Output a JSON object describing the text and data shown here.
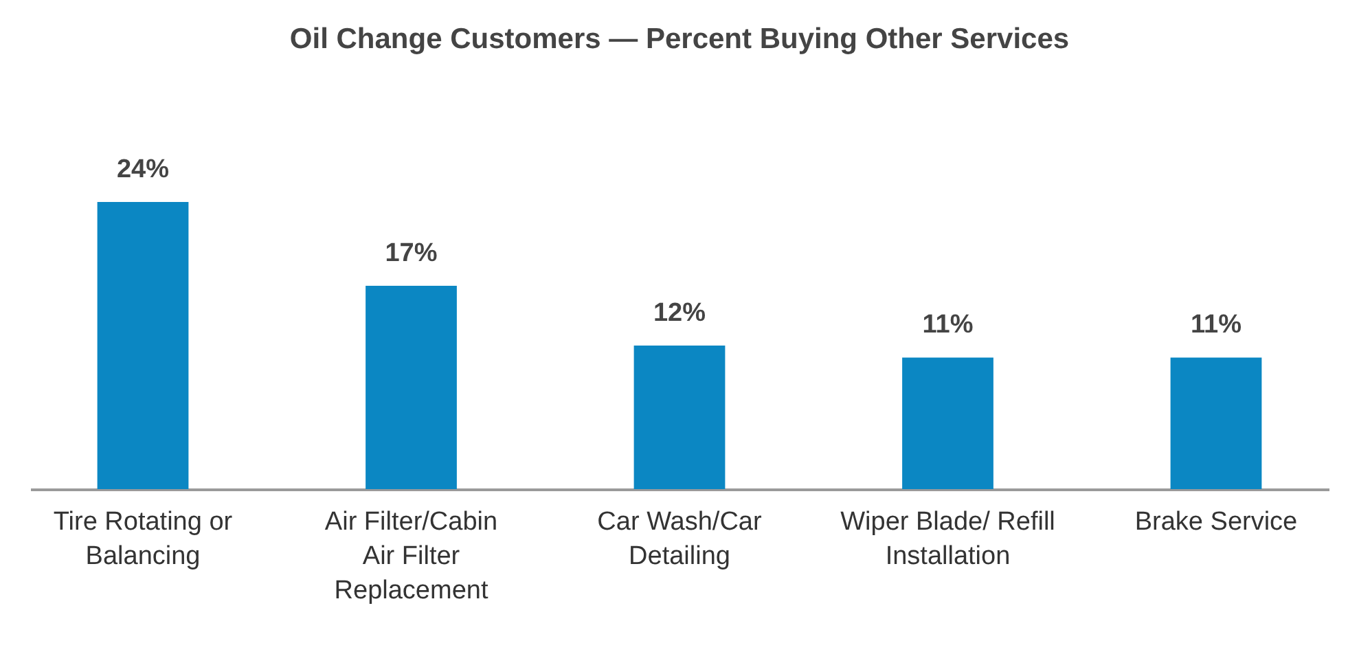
{
  "chart_data": {
    "type": "bar",
    "title": "Oil Change Customers — Percent Buying Other Services",
    "categories": [
      "Tire Rotating or Balancing",
      "Air Filter/Cabin Air Filter Replacement",
      "Car Wash/Car Detailing",
      "Wiper Blade/ Refill Installation",
      "Brake Service"
    ],
    "values": [
      24,
      17,
      12,
      11,
      11
    ],
    "value_labels": [
      "24%",
      "17%",
      "12%",
      "11%",
      "11%"
    ],
    "color": "#0b87c3",
    "grid": false,
    "tick_labels": "x"
  }
}
